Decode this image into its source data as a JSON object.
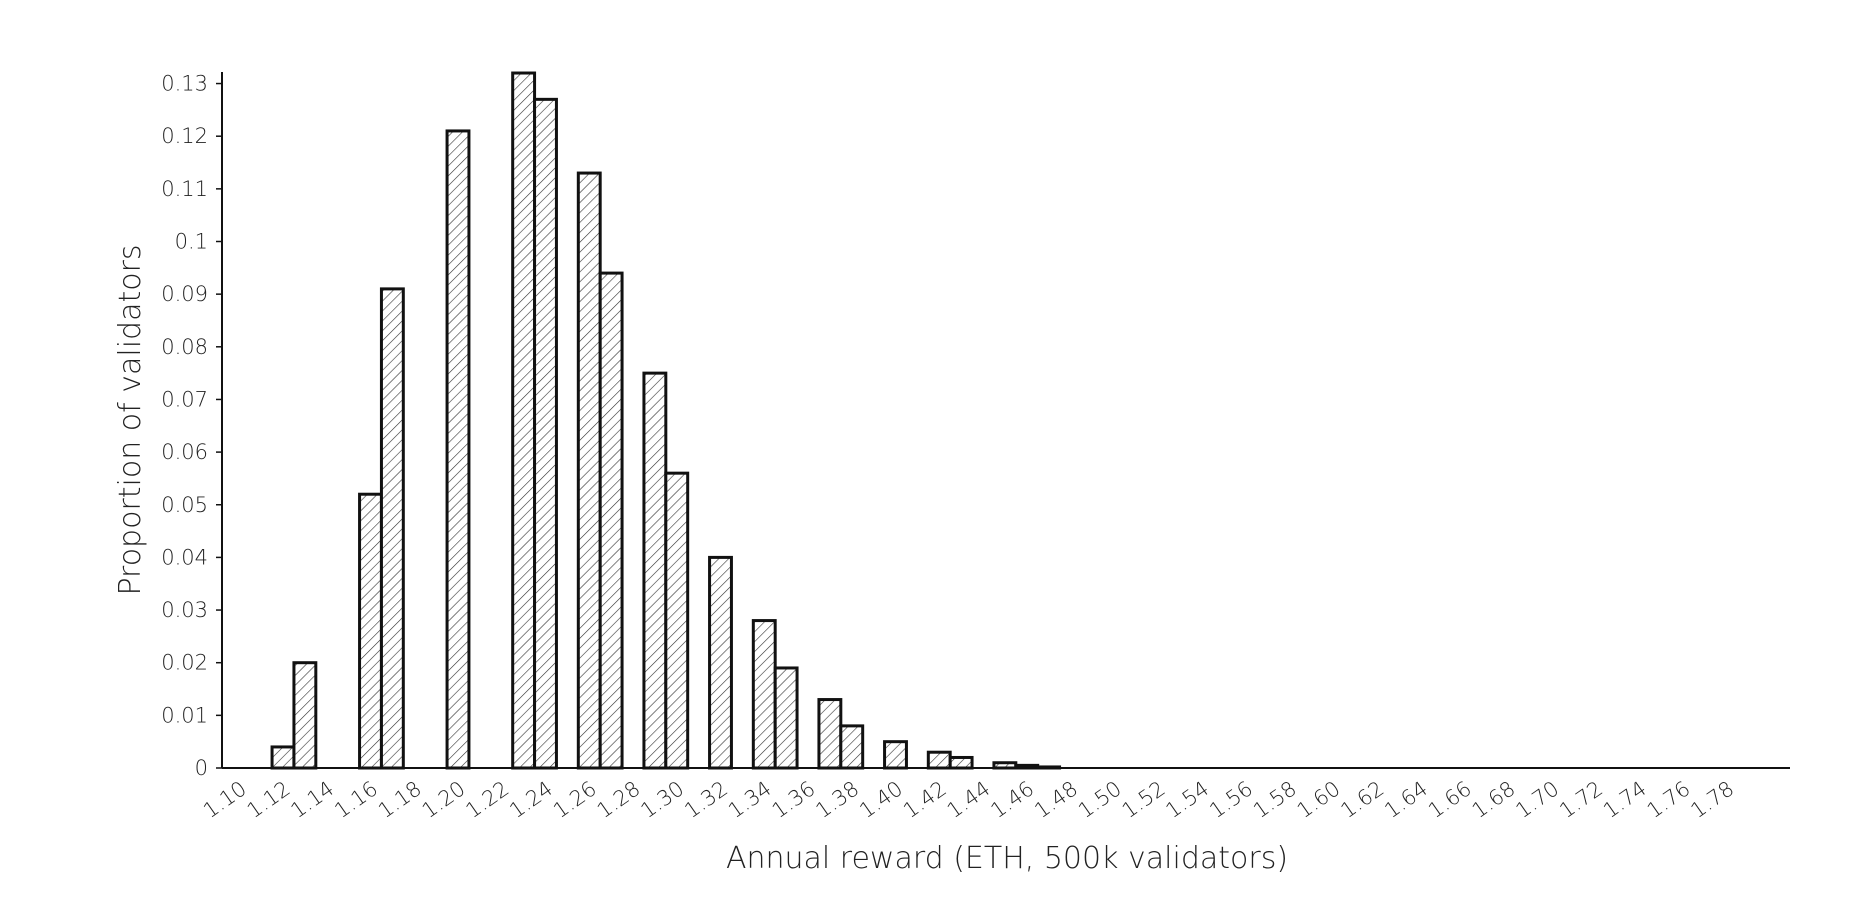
{
  "chart_data": {
    "type": "bar",
    "xlabel": "Annual reward (ETH, 500k validators)",
    "ylabel": "Proportion of validators",
    "x_ticks": [
      "1.10",
      "1.12",
      "1.14",
      "1.16",
      "1.18",
      "1.20",
      "1.22",
      "1.24",
      "1.26",
      "1.28",
      "1.30",
      "1.32",
      "1.34",
      "1.36",
      "1.38",
      "1.40",
      "1.42",
      "1.44",
      "1.46",
      "1.48",
      "1.50",
      "1.52",
      "1.54",
      "1.56",
      "1.58",
      "1.60",
      "1.62",
      "1.64",
      "1.66",
      "1.68",
      "1.70",
      "1.72",
      "1.74",
      "1.76",
      "1.78"
    ],
    "y_ticks": [
      "0",
      "0.01",
      "0.02",
      "0.03",
      "0.04",
      "0.05",
      "0.06",
      "0.07",
      "0.08",
      "0.09",
      "0.1",
      "0.11",
      "0.12",
      "0.13"
    ],
    "xlim": [
      1.1,
      1.79
    ],
    "ylim": [
      0,
      0.132
    ],
    "bin_width": 0.01,
    "bins": [
      {
        "x": 1.11,
        "value": 0.0
      },
      {
        "x": 1.12,
        "value": 0.004
      },
      {
        "x": 1.13,
        "value": 0.02
      },
      {
        "x": 1.14,
        "value": 0.0
      },
      {
        "x": 1.15,
        "value": 0.0
      },
      {
        "x": 1.16,
        "value": 0.052
      },
      {
        "x": 1.17,
        "value": 0.091
      },
      {
        "x": 1.18,
        "value": 0.0
      },
      {
        "x": 1.19,
        "value": 0.0
      },
      {
        "x": 1.2,
        "value": 0.121
      },
      {
        "x": 1.21,
        "value": 0.0
      },
      {
        "x": 1.22,
        "value": 0.0
      },
      {
        "x": 1.23,
        "value": 0.132
      },
      {
        "x": 1.24,
        "value": 0.127
      },
      {
        "x": 1.25,
        "value": 0.0
      },
      {
        "x": 1.26,
        "value": 0.113
      },
      {
        "x": 1.27,
        "value": 0.094
      },
      {
        "x": 1.28,
        "value": 0.0
      },
      {
        "x": 1.29,
        "value": 0.075
      },
      {
        "x": 1.3,
        "value": 0.056
      },
      {
        "x": 1.31,
        "value": 0.0
      },
      {
        "x": 1.32,
        "value": 0.04
      },
      {
        "x": 1.33,
        "value": 0.0
      },
      {
        "x": 1.34,
        "value": 0.028
      },
      {
        "x": 1.35,
        "value": 0.019
      },
      {
        "x": 1.36,
        "value": 0.0
      },
      {
        "x": 1.37,
        "value": 0.013
      },
      {
        "x": 1.38,
        "value": 0.008
      },
      {
        "x": 1.39,
        "value": 0.0
      },
      {
        "x": 1.4,
        "value": 0.005
      },
      {
        "x": 1.41,
        "value": 0.0
      },
      {
        "x": 1.42,
        "value": 0.003
      },
      {
        "x": 1.43,
        "value": 0.002
      },
      {
        "x": 1.44,
        "value": 0.0
      },
      {
        "x": 1.45,
        "value": 0.001
      },
      {
        "x": 1.46,
        "value": 0.0005
      },
      {
        "x": 1.47,
        "value": 0.0002
      },
      {
        "x": 1.48,
        "value": 0.0
      }
    ],
    "grid": false,
    "legend": "none",
    "colors": {
      "bar_stroke": "#111111",
      "hatch": "#333333",
      "bar_fill": "#ffffff"
    }
  }
}
